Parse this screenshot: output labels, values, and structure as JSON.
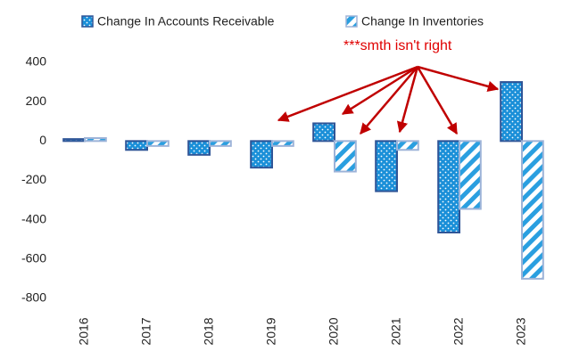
{
  "chart_data": {
    "type": "bar",
    "annotation": "***smth isn't right",
    "categories": [
      "2016",
      "2017",
      "2018",
      "2019",
      "2020",
      "2021",
      "2022",
      "2023"
    ],
    "series": [
      {
        "name": "Change In Accounts Receivable",
        "color": "#1a8fd8",
        "border": "#2f5597",
        "pattern": "dots",
        "values": [
          10,
          -45,
          -70,
          -135,
          90,
          -255,
          -465,
          300
        ]
      },
      {
        "name": "Change In Inventories",
        "color": "#2a9fe0",
        "border": "#9db3d8",
        "pattern": "stripes",
        "values": [
          15,
          -25,
          -25,
          -25,
          -155,
          -45,
          -345,
          -700
        ]
      }
    ],
    "ylim": [
      -800,
      400
    ],
    "yticks": [
      -800,
      -600,
      -400,
      -200,
      0,
      200,
      400
    ],
    "grid": false
  }
}
